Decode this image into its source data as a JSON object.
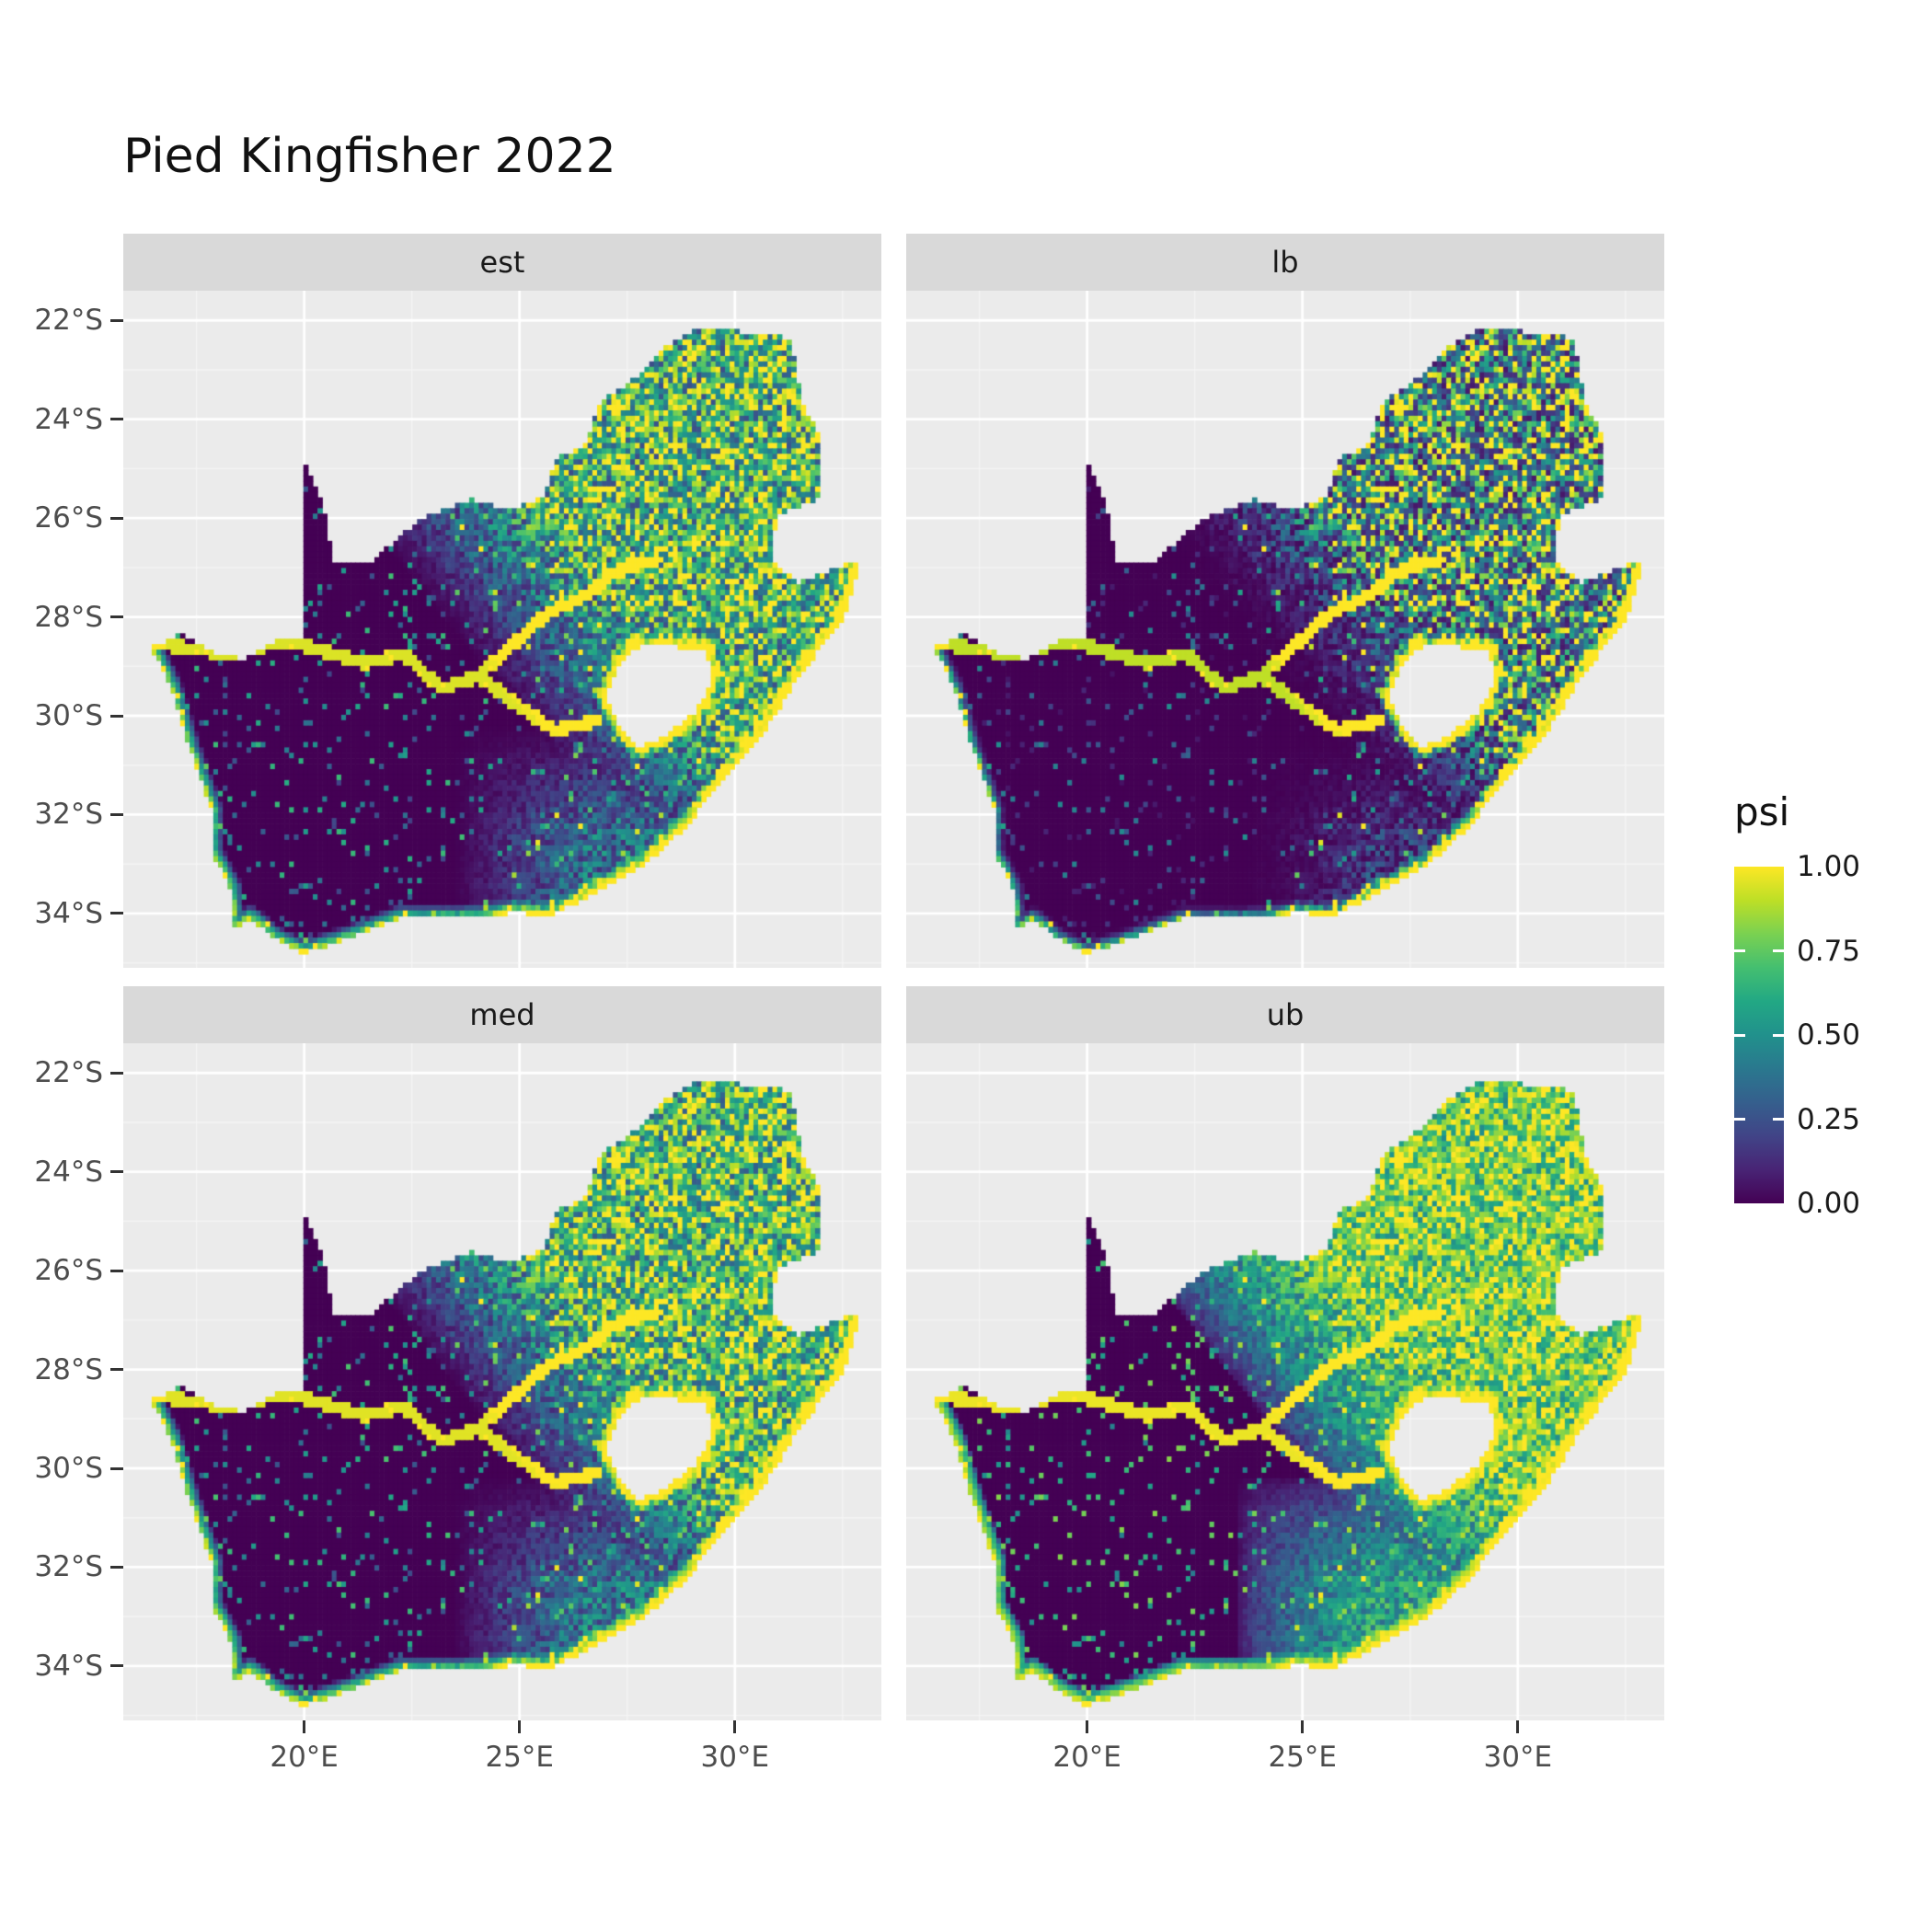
{
  "title": "Pied Kingfisher 2022",
  "facets": [
    {
      "label": "est",
      "exponent": 1.05
    },
    {
      "label": "lb",
      "exponent": 2.0
    },
    {
      "label": "med",
      "exponent": 0.92
    },
    {
      "label": "ub",
      "exponent": 0.55
    }
  ],
  "axes": {
    "x": {
      "domain": [
        15.8,
        33.4
      ],
      "ticks": [
        {
          "label": "20°E",
          "value": 20
        },
        {
          "label": "25°E",
          "value": 25
        },
        {
          "label": "30°E",
          "value": 30
        }
      ],
      "minor": [
        17.5,
        22.5,
        27.5,
        32.5
      ]
    },
    "y": {
      "domain": [
        -35.1,
        -21.4
      ],
      "ticks": [
        {
          "label": "22°S",
          "value": -22
        },
        {
          "label": "24°S",
          "value": -24
        },
        {
          "label": "26°S",
          "value": -26
        },
        {
          "label": "28°S",
          "value": -28
        },
        {
          "label": "30°S",
          "value": -30
        },
        {
          "label": "32°S",
          "value": -32
        },
        {
          "label": "34°S",
          "value": -34
        }
      ],
      "minor": [
        -23,
        -25,
        -27,
        -29,
        -31,
        -33,
        -35
      ]
    }
  },
  "legend": {
    "title": "psi",
    "ticks": [
      {
        "label": "1.00",
        "value": 1.0
      },
      {
        "label": "0.75",
        "value": 0.75
      },
      {
        "label": "0.50",
        "value": 0.5
      },
      {
        "label": "0.25",
        "value": 0.25
      },
      {
        "label": "0.00",
        "value": 0.0
      }
    ]
  },
  "colors": {
    "panel_bg": "#ebebeb",
    "strip_bg": "#d9d9d9",
    "grid_major": "#ffffff",
    "grid_minor": "#f5f5f5",
    "axis_text": "#4d4d4d",
    "title_text": "#111111",
    "viridis": [
      {
        "t": 0.0,
        "hex": "#440154"
      },
      {
        "t": 0.1,
        "hex": "#482475"
      },
      {
        "t": 0.2,
        "hex": "#414487"
      },
      {
        "t": 0.3,
        "hex": "#355f8d"
      },
      {
        "t": 0.4,
        "hex": "#2a788e"
      },
      {
        "t": 0.5,
        "hex": "#21918c"
      },
      {
        "t": 0.6,
        "hex": "#22a884"
      },
      {
        "t": 0.7,
        "hex": "#44bf70"
      },
      {
        "t": 0.8,
        "hex": "#7ad151"
      },
      {
        "t": 0.9,
        "hex": "#bddf26"
      },
      {
        "t": 1.0,
        "hex": "#fde725"
      }
    ]
  },
  "chart_data": {
    "type": "heatmap",
    "title": "Pied Kingfisher 2022",
    "variable": "psi",
    "value_range": [
      0,
      1
    ],
    "colormap": "viridis",
    "facets": [
      "est",
      "lb",
      "med",
      "ub"
    ],
    "x_ticks": [
      "20°E",
      "25°E",
      "30°E"
    ],
    "y_ticks": [
      "22°S",
      "24°S",
      "26°S",
      "28°S",
      "30°S",
      "32°S",
      "34°S"
    ],
    "legend_ticks": [
      1.0,
      0.75,
      0.5,
      0.25,
      0.0
    ],
    "extent_lon": [
      16.45,
      32.9
    ],
    "extent_lat": [
      -34.8,
      -22.14
    ],
    "raster_resolution_deg": 0.11,
    "map": {
      "outline": [
        [
          16.45,
          -28.6
        ],
        [
          17.15,
          -28.35
        ],
        [
          17.95,
          -28.75
        ],
        [
          18.6,
          -28.85
        ],
        [
          19.3,
          -28.5
        ],
        [
          19.99,
          -28.43
        ],
        [
          19.99,
          -24.77
        ],
        [
          20.45,
          -25.75
        ],
        [
          20.65,
          -26.85
        ],
        [
          21.65,
          -26.85
        ],
        [
          22.15,
          -26.4
        ],
        [
          22.85,
          -25.95
        ],
        [
          23.9,
          -25.62
        ],
        [
          24.75,
          -25.82
        ],
        [
          25.55,
          -25.6
        ],
        [
          25.9,
          -24.72
        ],
        [
          26.45,
          -24.6
        ],
        [
          26.9,
          -23.65
        ],
        [
          27.95,
          -23.0
        ],
        [
          28.35,
          -22.57
        ],
        [
          29.1,
          -22.2
        ],
        [
          29.7,
          -22.14
        ],
        [
          30.5,
          -22.3
        ],
        [
          31.3,
          -22.35
        ],
        [
          31.55,
          -23.65
        ],
        [
          31.9,
          -24.2
        ],
        [
          32.02,
          -25.1
        ],
        [
          31.9,
          -25.6
        ],
        [
          31.0,
          -25.95
        ],
        [
          30.8,
          -26.8
        ],
        [
          31.45,
          -27.3
        ],
        [
          32.1,
          -27.1
        ],
        [
          32.9,
          -26.85
        ],
        [
          32.55,
          -28.0
        ],
        [
          32.0,
          -28.6
        ],
        [
          31.3,
          -29.45
        ],
        [
          30.7,
          -30.3
        ],
        [
          29.9,
          -31.1
        ],
        [
          28.8,
          -32.3
        ],
        [
          27.9,
          -33.0
        ],
        [
          26.4,
          -33.75
        ],
        [
          25.65,
          -34.05
        ],
        [
          24.9,
          -33.97
        ],
        [
          24.15,
          -34.1
        ],
        [
          23.35,
          -34.1
        ],
        [
          22.2,
          -34.1
        ],
        [
          21.2,
          -34.45
        ],
        [
          20.0,
          -34.8
        ],
        [
          19.3,
          -34.5
        ],
        [
          18.75,
          -34.1
        ],
        [
          18.35,
          -34.3
        ],
        [
          18.3,
          -33.5
        ],
        [
          17.85,
          -32.75
        ],
        [
          17.85,
          -31.9
        ],
        [
          17.3,
          -30.55
        ],
        [
          16.9,
          -29.4
        ]
      ],
      "hole": [
        [
          27.0,
          -29.6
        ],
        [
          27.35,
          -28.9
        ],
        [
          27.75,
          -28.6
        ],
        [
          28.6,
          -28.6
        ],
        [
          29.35,
          -28.65
        ],
        [
          29.45,
          -29.3
        ],
        [
          29.1,
          -29.9
        ],
        [
          28.4,
          -30.4
        ],
        [
          27.75,
          -30.65
        ],
        [
          27.35,
          -30.25
        ]
      ],
      "coastline": [
        [
          32.9,
          -26.85
        ],
        [
          32.55,
          -28.0
        ],
        [
          32.0,
          -28.6
        ],
        [
          31.3,
          -29.45
        ],
        [
          30.7,
          -30.3
        ],
        [
          29.9,
          -31.1
        ],
        [
          28.8,
          -32.3
        ],
        [
          27.9,
          -33.0
        ],
        [
          26.4,
          -33.75
        ],
        [
          25.65,
          -34.05
        ],
        [
          24.9,
          -33.97
        ],
        [
          24.15,
          -34.1
        ],
        [
          23.35,
          -34.1
        ],
        [
          22.2,
          -34.1
        ],
        [
          21.2,
          -34.45
        ],
        [
          20.0,
          -34.8
        ],
        [
          19.3,
          -34.5
        ],
        [
          18.75,
          -34.1
        ],
        [
          18.35,
          -34.3
        ],
        [
          18.3,
          -33.5
        ],
        [
          17.85,
          -32.75
        ],
        [
          17.85,
          -31.9
        ],
        [
          17.3,
          -30.55
        ],
        [
          16.9,
          -29.4
        ],
        [
          16.45,
          -28.6
        ]
      ],
      "rivers": [
        [
          [
            16.6,
            -28.55
          ],
          [
            18.2,
            -28.75
          ],
          [
            19.5,
            -28.5
          ],
          [
            20.3,
            -28.65
          ],
          [
            21.4,
            -28.95
          ],
          [
            22.3,
            -28.75
          ],
          [
            23.2,
            -29.45
          ],
          [
            24.05,
            -29.2
          ],
          [
            24.9,
            -29.75
          ],
          [
            25.8,
            -30.3
          ],
          [
            26.8,
            -30.1
          ]
        ],
        [
          [
            24.05,
            -29.2
          ],
          [
            25.0,
            -28.45
          ],
          [
            25.6,
            -27.95
          ],
          [
            26.6,
            -27.55
          ],
          [
            27.35,
            -27.0
          ],
          [
            28.2,
            -26.85
          ]
        ]
      ]
    }
  }
}
